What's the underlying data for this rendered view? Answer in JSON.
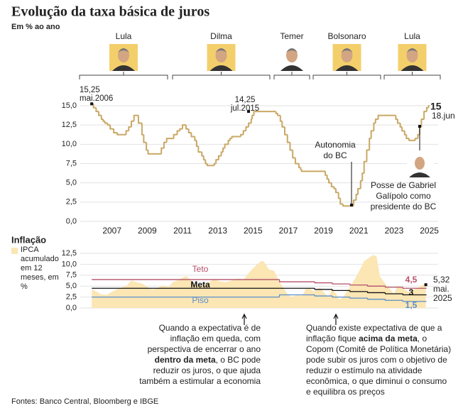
{
  "title": "Evolução da taxa básica de juros",
  "subtitle": "Em % ao ano",
  "source": "Fontes: Banco Central, Bloomberg e IBGE",
  "presidents": [
    "Lula",
    "Dilma",
    "Temer",
    "Bolsonaro",
    "Lula"
  ],
  "chart_data": [
    {
      "type": "step",
      "color": "#c9a865",
      "xlim": [
        2005.7,
        2026.0
      ],
      "xticks": [
        2007,
        2009,
        2011,
        2013,
        2015,
        2017,
        2019,
        2021,
        2023,
        2025
      ],
      "ylim": [
        0,
        15
      ],
      "yticks": [
        {
          "value": 0,
          "label": "0,0"
        },
        {
          "value": 2.5,
          "label": "2,5"
        },
        {
          "value": 5,
          "label": "5,0"
        },
        {
          "value": 7.5,
          "label": "7,5"
        },
        {
          "value": 10,
          "label": "10,0"
        },
        {
          "value": 12.5,
          "label": "12,5"
        },
        {
          "value": 15,
          "label": "15,0"
        }
      ],
      "grid": true,
      "x": [
        2006.35,
        2006.45,
        2006.6,
        2006.75,
        2006.9,
        2007.0,
        2007.1,
        2007.25,
        2007.4,
        2007.6,
        2007.8,
        2008.3,
        2008.45,
        2008.6,
        2008.75,
        2009.0,
        2009.2,
        2009.3,
        2009.45,
        2009.55,
        2010.3,
        2010.45,
        2010.6,
        2011.0,
        2011.2,
        2011.35,
        2011.5,
        2011.7,
        2011.85,
        2012.0,
        2012.2,
        2012.3,
        2012.4,
        2012.6,
        2012.7,
        2012.8,
        2012.9,
        2013.3,
        2013.4,
        2013.55,
        2013.7,
        2013.8,
        2013.9,
        2014.1,
        2014.2,
        2014.3,
        2014.8,
        2014.95,
        2015.1,
        2015.25,
        2015.4,
        2015.45,
        2015.55,
        2016.8,
        2016.9,
        2017.05,
        2017.15,
        2017.3,
        2017.45,
        2017.6,
        2017.75,
        2017.9,
        2018.1,
        2018.2,
        2018.25,
        2019.6,
        2019.7,
        2019.8,
        2019.95,
        2020.1,
        2020.2,
        2020.35,
        2020.45,
        2020.6,
        2021.2,
        2021.35,
        2021.45,
        2021.6,
        2021.7,
        2021.8,
        2021.95,
        2022.1,
        2022.2,
        2022.35,
        2022.45,
        2022.6,
        2023.6,
        2023.7,
        2023.85,
        2023.95,
        2024.1,
        2024.2,
        2024.35,
        2024.7,
        2024.85,
        2024.95,
        2025.05,
        2025.2,
        2025.35,
        2025.46
      ],
      "values": [
        15.25,
        14.75,
        14.25,
        13.75,
        13.25,
        13.0,
        12.75,
        12.5,
        12.0,
        11.5,
        11.25,
        11.75,
        12.25,
        13.0,
        13.75,
        12.75,
        11.25,
        10.25,
        9.25,
        8.75,
        9.5,
        10.25,
        10.75,
        11.25,
        11.75,
        12.0,
        12.5,
        12.0,
        11.5,
        11.0,
        10.5,
        9.75,
        9.0,
        8.5,
        8.0,
        7.5,
        7.25,
        7.5,
        8.0,
        8.5,
        9.0,
        9.5,
        10.0,
        10.5,
        10.75,
        11.0,
        11.25,
        11.75,
        12.25,
        12.75,
        13.25,
        13.75,
        14.25,
        14.0,
        13.75,
        13.0,
        12.25,
        11.25,
        10.25,
        9.25,
        8.25,
        7.5,
        7.0,
        6.75,
        6.5,
        6.0,
        5.5,
        5.0,
        4.5,
        4.25,
        3.75,
        3.0,
        2.25,
        2.0,
        2.75,
        3.5,
        4.25,
        5.25,
        6.25,
        7.75,
        9.25,
        10.75,
        11.75,
        12.75,
        13.25,
        13.75,
        13.25,
        12.75,
        12.25,
        11.75,
        11.25,
        10.75,
        10.5,
        10.75,
        11.25,
        12.25,
        13.25,
        14.25,
        14.75,
        15.0
      ],
      "annotations": [
        {
          "lines": [
            "15,25",
            "mai.2006"
          ]
        },
        {
          "lines": [
            "14,25",
            "jul.2015"
          ]
        },
        {
          "lines": [
            "Autonomia",
            "do BC"
          ]
        },
        {
          "lines": [
            "Posse de Gabriel",
            "Galípolo como",
            "presidente do BC"
          ]
        }
      ],
      "end_label": {
        "lines": [
          "15",
          "18.jun"
        ]
      }
    },
    {
      "type": "area",
      "title": "Inflação",
      "xlim": [
        2005.7,
        2026.0
      ],
      "ylim": [
        0,
        12.5
      ],
      "yticks": [
        {
          "value": 0,
          "label": "0,0"
        },
        {
          "value": 2.5,
          "label": "2,5"
        },
        {
          "value": 5,
          "label": "5,0"
        },
        {
          "value": 7.5,
          "label": "7,5"
        },
        {
          "value": 10,
          "label": "10,0"
        },
        {
          "value": 12.5,
          "label": "12,5"
        }
      ],
      "grid": true,
      "series": [
        {
          "name": "IPCA acumulado em 12 meses, em %",
          "color": "#fbe6b4",
          "x": [
            2006.35,
            2006.6,
            2006.9,
            2007.2,
            2007.5,
            2007.9,
            2008.3,
            2008.6,
            2008.9,
            2009.2,
            2009.5,
            2009.8,
            2010.1,
            2010.4,
            2010.7,
            2010.95,
            2011.3,
            2011.7,
            2011.95,
            2012.3,
            2012.6,
            2012.95,
            2013.3,
            2013.6,
            2013.95,
            2014.3,
            2014.7,
            2014.95,
            2015.3,
            2015.6,
            2015.95,
            2016.1,
            2016.4,
            2016.7,
            2016.95,
            2017.3,
            2017.5,
            2017.7,
            2017.95,
            2018.3,
            2018.5,
            2018.7,
            2018.95,
            2019.3,
            2019.6,
            2019.8,
            2019.95,
            2020.2,
            2020.4,
            2020.6,
            2020.95,
            2021.3,
            2021.6,
            2021.8,
            2022.3,
            2022.5,
            2022.7,
            2022.95,
            2023.3,
            2023.5,
            2023.7,
            2023.95,
            2024.3,
            2024.6,
            2024.95,
            2025.2,
            2025.3
          ],
          "values": [
            4.2,
            3.8,
            3.1,
            3.0,
            3.7,
            4.5,
            5.0,
            6.3,
            5.9,
            5.6,
            4.8,
            4.2,
            4.6,
            5.2,
            4.7,
            5.9,
            6.5,
            7.3,
            6.5,
            5.1,
            5.2,
            5.8,
            6.6,
            6.1,
            5.9,
            6.3,
            6.75,
            6.4,
            8.2,
            9.5,
            10.7,
            10.7,
            8.8,
            8.5,
            6.3,
            4.1,
            3.0,
            2.5,
            2.9,
            2.8,
            4.4,
            4.5,
            3.75,
            4.6,
            3.2,
            2.5,
            4.3,
            3.3,
            1.9,
            2.4,
            4.5,
            6.8,
            9.0,
            10.7,
            12.1,
            11.9,
            7.2,
            5.8,
            4.2,
            3.2,
            5.2,
            4.6,
            3.7,
            4.2,
            4.8,
            5.5,
            5.32
          ],
          "end_label": "5,32",
          "end_date": [
            "mai.",
            "2025"
          ]
        },
        {
          "name": "Teto",
          "color": "#b4506a",
          "x": [
            2006.35,
            2017.0,
            2019.0,
            2020.0,
            2021.0,
            2022.0,
            2023.0,
            2024.0,
            2025.3
          ],
          "values": [
            6.5,
            6.0,
            5.75,
            5.5,
            5.25,
            5.0,
            4.75,
            4.5,
            4.5
          ],
          "end_label": "4,5"
        },
        {
          "name": "Meta",
          "color": "#111111",
          "x": [
            2006.35,
            2017.0,
            2019.0,
            2020.0,
            2021.0,
            2022.0,
            2023.0,
            2024.0,
            2025.3
          ],
          "values": [
            4.5,
            4.5,
            4.25,
            4.0,
            3.75,
            3.5,
            3.25,
            3.0,
            3.0
          ],
          "end_label": "3"
        },
        {
          "name": "Piso",
          "color": "#5b8fc9",
          "x": [
            2006.35,
            2017.0,
            2019.0,
            2020.0,
            2021.0,
            2022.0,
            2023.0,
            2024.0,
            2025.3
          ],
          "values": [
            2.5,
            3.0,
            2.75,
            2.5,
            2.25,
            2.0,
            1.75,
            1.5,
            1.5
          ],
          "end_label": "1,5"
        }
      ],
      "notes": [
        {
          "parts": [
            "Quando a expectativa é de inflação em queda, com perspectiva de encerrar o ano ",
            "dentro da meta",
            ", o BC pode reduzir os juros, o que ajuda também a estimular a economia"
          ]
        },
        {
          "parts": [
            "Quando existe expectativa de que a inflação fique ",
            "acima da meta",
            ", o Copom (Comitê de Política Monetária) pode subir os juros com o objetivo de reduzir o estímulo na atividade econômica, o que diminui o consumo e equilibra os preços"
          ]
        }
      ]
    }
  ]
}
